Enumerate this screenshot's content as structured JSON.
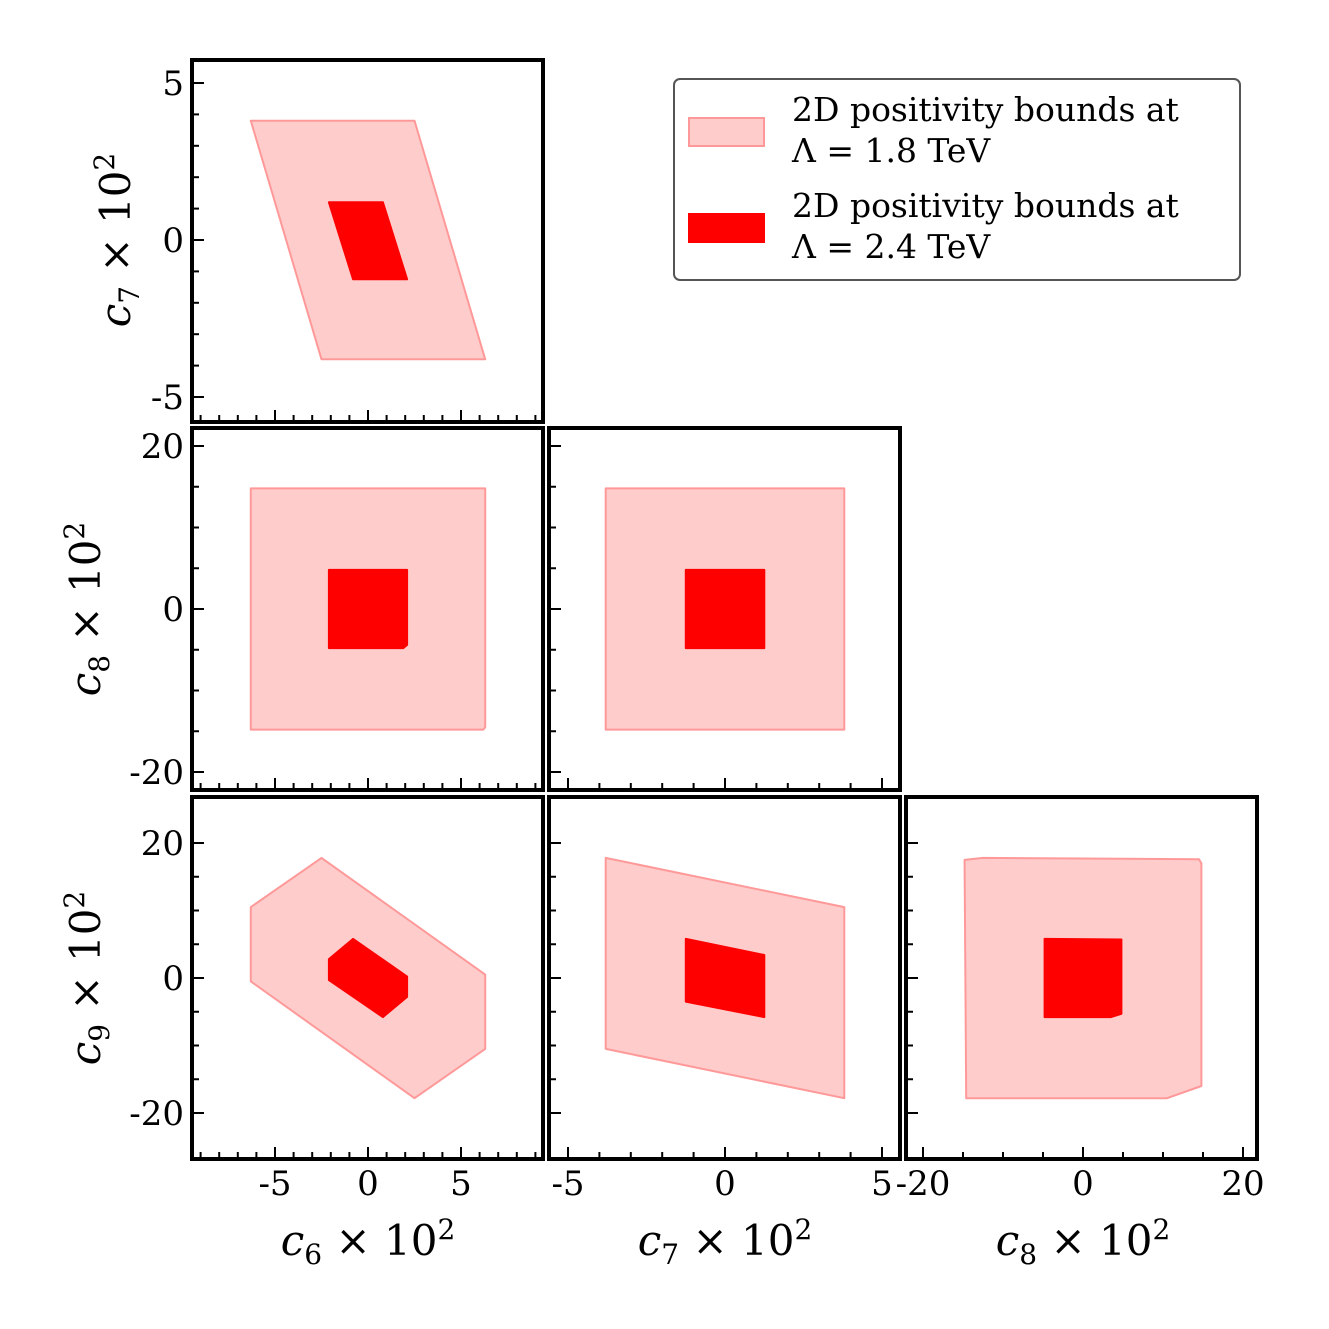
{
  "chart_data": {
    "type": "area",
    "legend": {
      "placement": "top-right",
      "entries": [
        {
          "line1": "2D positivity bounds at",
          "line2": "Λ = 1.8 TeV",
          "color": "#ffcccc",
          "edge": "#ff9999"
        },
        {
          "line1": "2D positivity bounds at",
          "line2": "Λ = 2.4 TeV",
          "color": "#ff0000",
          "edge": "#ff0000"
        }
      ]
    },
    "axes": {
      "c6": {
        "symbol": "c",
        "sub": "6",
        "label_suffix": " × 10",
        "sup": "2",
        "range": [
          -9.5,
          9.5
        ],
        "ticks": [
          -5,
          0,
          5
        ],
        "tick_labels": [
          "-5",
          "0",
          "5"
        ],
        "minor": [
          -9,
          -8,
          -7,
          -6,
          -4,
          -3,
          -2,
          -1,
          1,
          2,
          3,
          4,
          6,
          7,
          8,
          9
        ]
      },
      "c7": {
        "symbol": "c",
        "sub": "7",
        "label_suffix": " × 10",
        "sup": "2",
        "range": [
          -5.3,
          5.3
        ],
        "ticks": [
          -5,
          0,
          5
        ],
        "tick_labels": [
          "-5",
          "0",
          "5"
        ],
        "minor": [
          -4,
          -3,
          -2,
          -1,
          1,
          2,
          3,
          4
        ]
      },
      "c8": {
        "symbol": "c",
        "sub": "8",
        "label_suffix": " × 10",
        "sup": "2",
        "range": [
          -21.8,
          21.8
        ],
        "ticks": [
          -20,
          0,
          20
        ],
        "tick_labels": [
          "-20",
          "0",
          "20"
        ],
        "minor": [
          -15,
          -10,
          -5,
          5,
          10,
          15
        ]
      },
      "c9": {
        "symbol": "c",
        "sub": "9",
        "label_suffix": " × 10",
        "sup": "2",
        "ticks": [
          -20,
          0,
          20
        ],
        "tick_labels": [
          "-20",
          "0",
          "20"
        ],
        "minor": [
          -15,
          -10,
          -5,
          5,
          10,
          15
        ]
      }
    },
    "panels": [
      {
        "x": "c6",
        "y": "c7",
        "outer": [
          [
            -6.3,
            3.8
          ],
          [
            2.5,
            3.8
          ],
          [
            6.3,
            -3.8
          ],
          [
            -2.5,
            -3.8
          ]
        ],
        "inner": [
          [
            -2.1,
            1.2
          ],
          [
            0.8,
            1.2
          ],
          [
            2.1,
            -1.25
          ],
          [
            -0.8,
            -1.25
          ]
        ]
      },
      {
        "x": "c6",
        "y": "c8",
        "outer": [
          [
            -6.3,
            14.8
          ],
          [
            6.3,
            14.8
          ],
          [
            6.3,
            -14.5
          ],
          [
            6.2,
            -14.8
          ],
          [
            -6.3,
            -14.8
          ],
          [
            -6.3,
            14
          ]
        ],
        "inner": [
          [
            -2.1,
            4.8
          ],
          [
            2.1,
            4.8
          ],
          [
            2.1,
            -4.4
          ],
          [
            1.9,
            -4.8
          ],
          [
            -2.1,
            -4.8
          ]
        ]
      },
      {
        "x": "c7",
        "y": "c8",
        "outer": [
          [
            -3.8,
            14.8
          ],
          [
            3.8,
            14.8
          ],
          [
            3.8,
            -14.8
          ],
          [
            -3.8,
            -14.8
          ]
        ],
        "inner": [
          [
            -1.25,
            4.8
          ],
          [
            1.25,
            4.8
          ],
          [
            1.25,
            -4.8
          ],
          [
            -1.25,
            -4.8
          ]
        ]
      },
      {
        "x": "c6",
        "y": "c9",
        "outer": [
          [
            -2.5,
            17.8
          ],
          [
            6.3,
            0.5
          ],
          [
            6.3,
            -10.5
          ],
          [
            2.5,
            -17.8
          ],
          [
            -6.3,
            -0.5
          ],
          [
            -6.3,
            10.5
          ]
        ],
        "inner": [
          [
            -0.8,
            5.8
          ],
          [
            2.1,
            0.2
          ],
          [
            2.1,
            -2.8
          ],
          [
            0.8,
            -5.8
          ],
          [
            -2.1,
            -0.3
          ],
          [
            -2.1,
            2.8
          ]
        ]
      },
      {
        "x": "c7",
        "y": "c9",
        "outer": [
          [
            -3.8,
            17.8
          ],
          [
            3.8,
            10.5
          ],
          [
            3.8,
            -17.8
          ],
          [
            -3.8,
            -10.5
          ]
        ],
        "inner": [
          [
            -1.25,
            5.8
          ],
          [
            1.25,
            3.4
          ],
          [
            1.25,
            -5.8
          ],
          [
            -1.25,
            -3.5
          ]
        ]
      },
      {
        "x": "c8",
        "y": "c9",
        "outer": [
          [
            -14.8,
            17.5
          ],
          [
            -12.5,
            17.8
          ],
          [
            14.5,
            17.6
          ],
          [
            14.8,
            17.0
          ],
          [
            14.8,
            -16.0
          ],
          [
            10.5,
            -17.8
          ],
          [
            -14.6,
            -17.8
          ],
          [
            -14.8,
            17.0
          ]
        ],
        "inner": [
          [
            -4.8,
            5.8
          ],
          [
            4.8,
            5.7
          ],
          [
            4.8,
            -5.3
          ],
          [
            3.5,
            -5.8
          ],
          [
            -4.8,
            -5.8
          ]
        ]
      }
    ]
  }
}
